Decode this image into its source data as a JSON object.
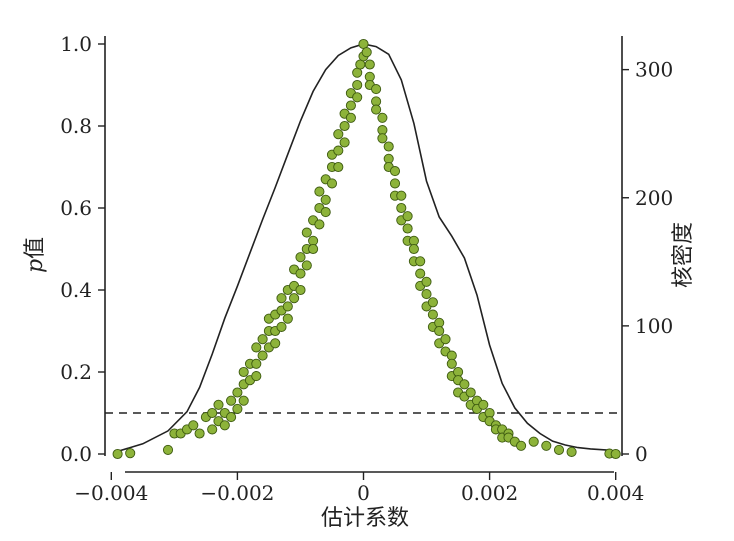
{
  "chart_data": {
    "type": "scatter",
    "xlabel": "估计系数",
    "ylabel_left_italic": "p",
    "ylabel_left_rest": "值",
    "ylabel_right": "核密度",
    "xlim": [
      -0.0041,
      0.0041
    ],
    "ylim_left": [
      0.0,
      1.0
    ],
    "ylim_right": [
      0,
      320
    ],
    "x_ticks": [
      -0.004,
      -0.002,
      0,
      0.002,
      0.004
    ],
    "x_tick_labels": [
      "−0.004",
      "−0.002",
      "0",
      "0.002",
      "0.004"
    ],
    "y_left_ticks": [
      0.0,
      0.2,
      0.4,
      0.6,
      0.8,
      1.0
    ],
    "y_left_tick_labels": [
      "0.0",
      "0.2",
      "0.4",
      "0.6",
      "0.8",
      "1.0"
    ],
    "y_right_ticks": [
      0,
      100,
      200,
      300
    ],
    "y_right_tick_labels": [
      "0",
      "100",
      "200",
      "300"
    ],
    "threshold_p": 0.1,
    "point_color": "#8db33a",
    "point_edge": "#3d5a10",
    "density_color": "#222222",
    "scatter_points": [
      [
        -0.0039,
        0.0
      ],
      [
        -0.0037,
        0.002
      ],
      [
        -0.0031,
        0.01
      ],
      [
        -0.003,
        0.05
      ],
      [
        -0.0029,
        0.05
      ],
      [
        -0.0028,
        0.06
      ],
      [
        -0.0027,
        0.07
      ],
      [
        -0.0026,
        0.05
      ],
      [
        -0.0025,
        0.09
      ],
      [
        -0.0024,
        0.06
      ],
      [
        -0.0024,
        0.1
      ],
      [
        -0.0023,
        0.08
      ],
      [
        -0.0023,
        0.12
      ],
      [
        -0.0022,
        0.1
      ],
      [
        -0.0022,
        0.07
      ],
      [
        -0.0021,
        0.13
      ],
      [
        -0.0021,
        0.09
      ],
      [
        -0.002,
        0.15
      ],
      [
        -0.002,
        0.11
      ],
      [
        -0.0019,
        0.17
      ],
      [
        -0.0019,
        0.2
      ],
      [
        -0.0019,
        0.13
      ],
      [
        -0.0018,
        0.22
      ],
      [
        -0.0018,
        0.18
      ],
      [
        -0.0017,
        0.22
      ],
      [
        -0.0017,
        0.26
      ],
      [
        -0.0017,
        0.19
      ],
      [
        -0.0016,
        0.28
      ],
      [
        -0.0016,
        0.24
      ],
      [
        -0.0015,
        0.3
      ],
      [
        -0.0015,
        0.26
      ],
      [
        -0.0015,
        0.33
      ],
      [
        -0.0014,
        0.3
      ],
      [
        -0.0014,
        0.27
      ],
      [
        -0.0014,
        0.34
      ],
      [
        -0.0013,
        0.35
      ],
      [
        -0.0013,
        0.31
      ],
      [
        -0.0013,
        0.38
      ],
      [
        -0.0012,
        0.36
      ],
      [
        -0.0012,
        0.4
      ],
      [
        -0.0012,
        0.33
      ],
      [
        -0.0011,
        0.41
      ],
      [
        -0.0011,
        0.38
      ],
      [
        -0.0011,
        0.45
      ],
      [
        -0.001,
        0.44
      ],
      [
        -0.001,
        0.48
      ],
      [
        -0.001,
        0.4
      ],
      [
        -0.0009,
        0.5
      ],
      [
        -0.0009,
        0.46
      ],
      [
        -0.0009,
        0.54
      ],
      [
        -0.0008,
        0.52
      ],
      [
        -0.0008,
        0.57
      ],
      [
        -0.0008,
        0.5
      ],
      [
        -0.0007,
        0.6
      ],
      [
        -0.0007,
        0.56
      ],
      [
        -0.0007,
        0.64
      ],
      [
        -0.0006,
        0.62
      ],
      [
        -0.0006,
        0.67
      ],
      [
        -0.0006,
        0.59
      ],
      [
        -0.0005,
        0.7
      ],
      [
        -0.0005,
        0.66
      ],
      [
        -0.0005,
        0.73
      ],
      [
        -0.0004,
        0.74
      ],
      [
        -0.0004,
        0.78
      ],
      [
        -0.0004,
        0.7
      ],
      [
        -0.0003,
        0.8
      ],
      [
        -0.0003,
        0.76
      ],
      [
        -0.0003,
        0.83
      ],
      [
        -0.0002,
        0.85
      ],
      [
        -0.0002,
        0.88
      ],
      [
        -0.0002,
        0.82
      ],
      [
        -0.0001,
        0.9
      ],
      [
        -0.0001,
        0.93
      ],
      [
        -0.0001,
        0.87
      ],
      [
        -5e-05,
        0.95
      ],
      [
        0.0,
        1.0
      ],
      [
        0.0,
        0.97
      ],
      [
        5e-05,
        0.98
      ],
      [
        0.0001,
        0.95
      ],
      [
        0.0001,
        0.92
      ],
      [
        0.0001,
        0.9
      ],
      [
        0.0002,
        0.89
      ],
      [
        0.0002,
        0.86
      ],
      [
        0.0002,
        0.84
      ],
      [
        0.0003,
        0.82
      ],
      [
        0.0003,
        0.79
      ],
      [
        0.0003,
        0.77
      ],
      [
        0.0004,
        0.75
      ],
      [
        0.0004,
        0.72
      ],
      [
        0.0004,
        0.7
      ],
      [
        0.0005,
        0.69
      ],
      [
        0.0005,
        0.66
      ],
      [
        0.0005,
        0.63
      ],
      [
        0.0006,
        0.63
      ],
      [
        0.0006,
        0.6
      ],
      [
        0.0006,
        0.57
      ],
      [
        0.0007,
        0.58
      ],
      [
        0.0007,
        0.55
      ],
      [
        0.0007,
        0.52
      ],
      [
        0.0008,
        0.52
      ],
      [
        0.0008,
        0.5
      ],
      [
        0.0008,
        0.47
      ],
      [
        0.0009,
        0.47
      ],
      [
        0.0009,
        0.44
      ],
      [
        0.0009,
        0.41
      ],
      [
        0.001,
        0.42
      ],
      [
        0.001,
        0.39
      ],
      [
        0.001,
        0.36
      ],
      [
        0.0011,
        0.37
      ],
      [
        0.0011,
        0.34
      ],
      [
        0.0011,
        0.31
      ],
      [
        0.0012,
        0.32
      ],
      [
        0.0012,
        0.3
      ],
      [
        0.0012,
        0.27
      ],
      [
        0.0013,
        0.28
      ],
      [
        0.0013,
        0.25
      ],
      [
        0.0014,
        0.24
      ],
      [
        0.0014,
        0.22
      ],
      [
        0.0014,
        0.19
      ],
      [
        0.0015,
        0.2
      ],
      [
        0.0015,
        0.18
      ],
      [
        0.0015,
        0.15
      ],
      [
        0.0016,
        0.17
      ],
      [
        0.0016,
        0.14
      ],
      [
        0.0017,
        0.15
      ],
      [
        0.0017,
        0.12
      ],
      [
        0.0018,
        0.13
      ],
      [
        0.0018,
        0.11
      ],
      [
        0.0019,
        0.12
      ],
      [
        0.0019,
        0.09
      ],
      [
        0.002,
        0.1
      ],
      [
        0.002,
        0.08
      ],
      [
        0.0021,
        0.07
      ],
      [
        0.0021,
        0.06
      ],
      [
        0.0022,
        0.06
      ],
      [
        0.0022,
        0.04
      ],
      [
        0.0023,
        0.05
      ],
      [
        0.0023,
        0.04
      ],
      [
        0.0024,
        0.03
      ],
      [
        0.0025,
        0.02
      ],
      [
        0.0027,
        0.03
      ],
      [
        0.0029,
        0.02
      ],
      [
        0.0031,
        0.01
      ],
      [
        0.0033,
        0.005
      ],
      [
        0.0039,
        0.001
      ],
      [
        0.004,
        0.0
      ]
    ],
    "density_curve": [
      [
        -0.0039,
        2
      ],
      [
        -0.0035,
        8
      ],
      [
        -0.0031,
        18
      ],
      [
        -0.0028,
        33
      ],
      [
        -0.0026,
        52
      ],
      [
        -0.0024,
        78
      ],
      [
        -0.0022,
        106
      ],
      [
        -0.002,
        131
      ],
      [
        -0.0018,
        157
      ],
      [
        -0.0016,
        183
      ],
      [
        -0.0014,
        208
      ],
      [
        -0.0012,
        234
      ],
      [
        -0.001,
        260
      ],
      [
        -0.0008,
        283
      ],
      [
        -0.0006,
        300
      ],
      [
        -0.0004,
        311
      ],
      [
        -0.0002,
        317
      ],
      [
        0.0,
        320
      ],
      [
        0.0002,
        318
      ],
      [
        0.0004,
        312
      ],
      [
        0.0006,
        292
      ],
      [
        0.0008,
        258
      ],
      [
        0.001,
        213
      ],
      [
        0.0012,
        185
      ],
      [
        0.0014,
        170
      ],
      [
        0.0016,
        153
      ],
      [
        0.0018,
        124
      ],
      [
        0.002,
        85
      ],
      [
        0.0022,
        55
      ],
      [
        0.0024,
        36
      ],
      [
        0.0026,
        24
      ],
      [
        0.0028,
        16
      ],
      [
        0.003,
        10
      ],
      [
        0.0032,
        7
      ],
      [
        0.0034,
        5
      ],
      [
        0.0036,
        4
      ],
      [
        0.0039,
        3
      ]
    ]
  }
}
